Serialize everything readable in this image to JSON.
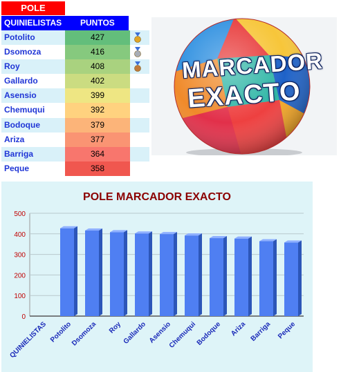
{
  "table": {
    "title": "POLE",
    "col_name": "QUINIELISTAS",
    "col_points": "PUNTOS",
    "rows": [
      {
        "name": "Potolito",
        "points": "427",
        "color": "#63be7b",
        "medal": "gold"
      },
      {
        "name": "Dsomoza",
        "points": "416",
        "color": "#86c97e",
        "medal": "silver"
      },
      {
        "name": "Roy",
        "points": "408",
        "color": "#a9d27f",
        "medal": "bronze"
      },
      {
        "name": "Gallardo",
        "points": "402",
        "color": "#cbdc81",
        "medal": ""
      },
      {
        "name": "Asensio",
        "points": "399",
        "color": "#eee683",
        "medal": ""
      },
      {
        "name": "Chemuqui",
        "points": "392",
        "color": "#ffd27f",
        "medal": ""
      },
      {
        "name": "Bodoque",
        "points": "379",
        "color": "#fcb479",
        "medal": ""
      },
      {
        "name": "Ariza",
        "points": "377",
        "color": "#fa9473",
        "medal": ""
      },
      {
        "name": "Barriga",
        "points": "364",
        "color": "#f8766d",
        "medal": ""
      },
      {
        "name": "Peque",
        "points": "358",
        "color": "#f0574f",
        "medal": ""
      }
    ]
  },
  "ball": {
    "line1": "MARCADOR",
    "line2": "EXACTO"
  },
  "chart_data": {
    "type": "bar",
    "title": "POLE MARCADOR EXACTO",
    "categories": [
      "QUINIELISTAS",
      "Potolito",
      "Dsomoza",
      "Roy",
      "Gallardo",
      "Asensio",
      "Chemuqui",
      "Bodoque",
      "Ariza",
      "Barriga",
      "Peque"
    ],
    "values": [
      0,
      427,
      416,
      408,
      402,
      399,
      392,
      379,
      377,
      364,
      358
    ],
    "yticks": [
      "0",
      "100",
      "200",
      "300",
      "400",
      "500"
    ],
    "ylim": [
      0,
      500
    ],
    "grid": true,
    "legend": "none",
    "bar_color": "#4f7ff2",
    "title_color": "#8b0000",
    "tick_color": "#c00000",
    "label_color": "#1a2ab8"
  }
}
